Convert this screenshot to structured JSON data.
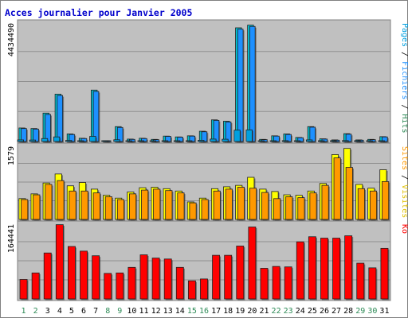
{
  "title": "Acces journalier pour Janvier 2005",
  "colors": {
    "background": "#ffffff",
    "plot_bg": "#c0c0c0",
    "border": "#808080",
    "title": "#0000cc",
    "hits": "#00c0d0",
    "files": "#1e90ff",
    "pages": "#00a0e0",
    "visits": "#ffff00",
    "sites": "#ff9900",
    "kb": "#ff0000",
    "weekday": "#000000",
    "weekend": "#2e8b57"
  },
  "panels": {
    "top": {
      "ymax_label": "4434490",
      "legend": [
        {
          "text": "Pages",
          "color": "#00a0e0"
        },
        {
          "text": " / ",
          "color": "#000000"
        },
        {
          "text": "Fichiers",
          "color": "#1e90ff"
        },
        {
          "text": " / ",
          "color": "#000000"
        },
        {
          "text": "Hits",
          "color": "#2e8b57"
        }
      ]
    },
    "middle": {
      "ymax_label": "1579",
      "legend": [
        {
          "text": "Sites",
          "color": "#ff9900"
        },
        {
          "text": " / ",
          "color": "#000000"
        },
        {
          "text": "Visites",
          "color": "#e0c000"
        }
      ]
    },
    "bottom": {
      "ymax_label": "164441",
      "legend": [
        {
          "text": "Ko",
          "color": "#ff0000"
        }
      ]
    }
  },
  "chart_data": {
    "type": "bar",
    "title": "Acces journalier pour Janvier 2005",
    "categories": [
      "1",
      "2",
      "3",
      "4",
      "5",
      "6",
      "7",
      "8",
      "9",
      "10",
      "11",
      "12",
      "13",
      "14",
      "15",
      "16",
      "17",
      "18",
      "19",
      "20",
      "21",
      "22",
      "23",
      "24",
      "25",
      "26",
      "27",
      "28",
      "29",
      "30",
      "31"
    ],
    "weekend_days": [
      "1",
      "2",
      "8",
      "9",
      "15",
      "16",
      "22",
      "23",
      "29",
      "30"
    ],
    "panels": [
      {
        "name": "Pages / Fichiers / Hits",
        "ymax": 4434490,
        "series": [
          {
            "name": "Hits",
            "values": [
              500000,
              480000,
              1050000,
              1750000,
              280000,
              120000,
              1900000,
              30000,
              550000,
              90000,
              120000,
              80000,
              200000,
              170000,
              210000,
              380000,
              800000,
              750000,
              4200000,
              4300000,
              80000,
              210000,
              280000,
              150000,
              550000,
              100000,
              60000,
              290000,
              60000,
              80000,
              180000
            ]
          },
          {
            "name": "Fichiers",
            "values": [
              480000,
              460000,
              1000000,
              1700000,
              260000,
              110000,
              1850000,
              20000,
              520000,
              80000,
              110000,
              70000,
              190000,
              160000,
              200000,
              360000,
              780000,
              720000,
              4150000,
              4250000,
              70000,
              200000,
              260000,
              140000,
              530000,
              90000,
              50000,
              270000,
              50000,
              70000,
              170000
            ]
          },
          {
            "name": "Pages",
            "values": [
              60000,
              55000,
              110000,
              170000,
              40000,
              25000,
              190000,
              8000,
              65000,
              15000,
              18000,
              14000,
              25000,
              22000,
              26000,
              45000,
              90000,
              85000,
              420000,
              430000,
              14000,
              26000,
              32000,
              20000,
              60000,
              15000,
              10000,
              35000,
              10000,
              12000,
              22000
            ]
          }
        ]
      },
      {
        "name": "Sites / Visites",
        "ymax": 1579,
        "series": [
          {
            "name": "Visites",
            "values": [
              440,
              540,
              770,
              960,
              710,
              780,
              640,
              510,
              450,
              580,
              670,
              680,
              650,
              600,
              370,
              450,
              650,
              690,
              720,
              890,
              640,
              590,
              520,
              510,
              600,
              760,
              1370,
              1500,
              740,
              660,
              1050
            ]
          },
          {
            "name": "Sites",
            "values": [
              420,
              520,
              740,
              820,
              600,
              600,
              560,
              480,
              420,
              540,
              620,
              640,
              610,
              560,
              350,
              420,
              600,
              640,
              680,
              660,
              570,
              440,
              480,
              460,
              560,
              720,
              1300,
              1100,
              650,
              600,
              800
            ]
          }
        ]
      },
      {
        "name": "Ko",
        "ymax": 164441,
        "series": [
          {
            "name": "Ko",
            "values": [
              42000,
              56000,
              99000,
              160000,
              113000,
              103000,
              93000,
              55000,
              56000,
              68000,
              95000,
              88000,
              86000,
              68000,
              39000,
              43000,
              94000,
              94000,
              114000,
              155000,
              66000,
              70000,
              69000,
              123000,
              134000,
              131000,
              131000,
              136000,
              77000,
              67000,
              109000
            ]
          }
        ]
      }
    ]
  }
}
